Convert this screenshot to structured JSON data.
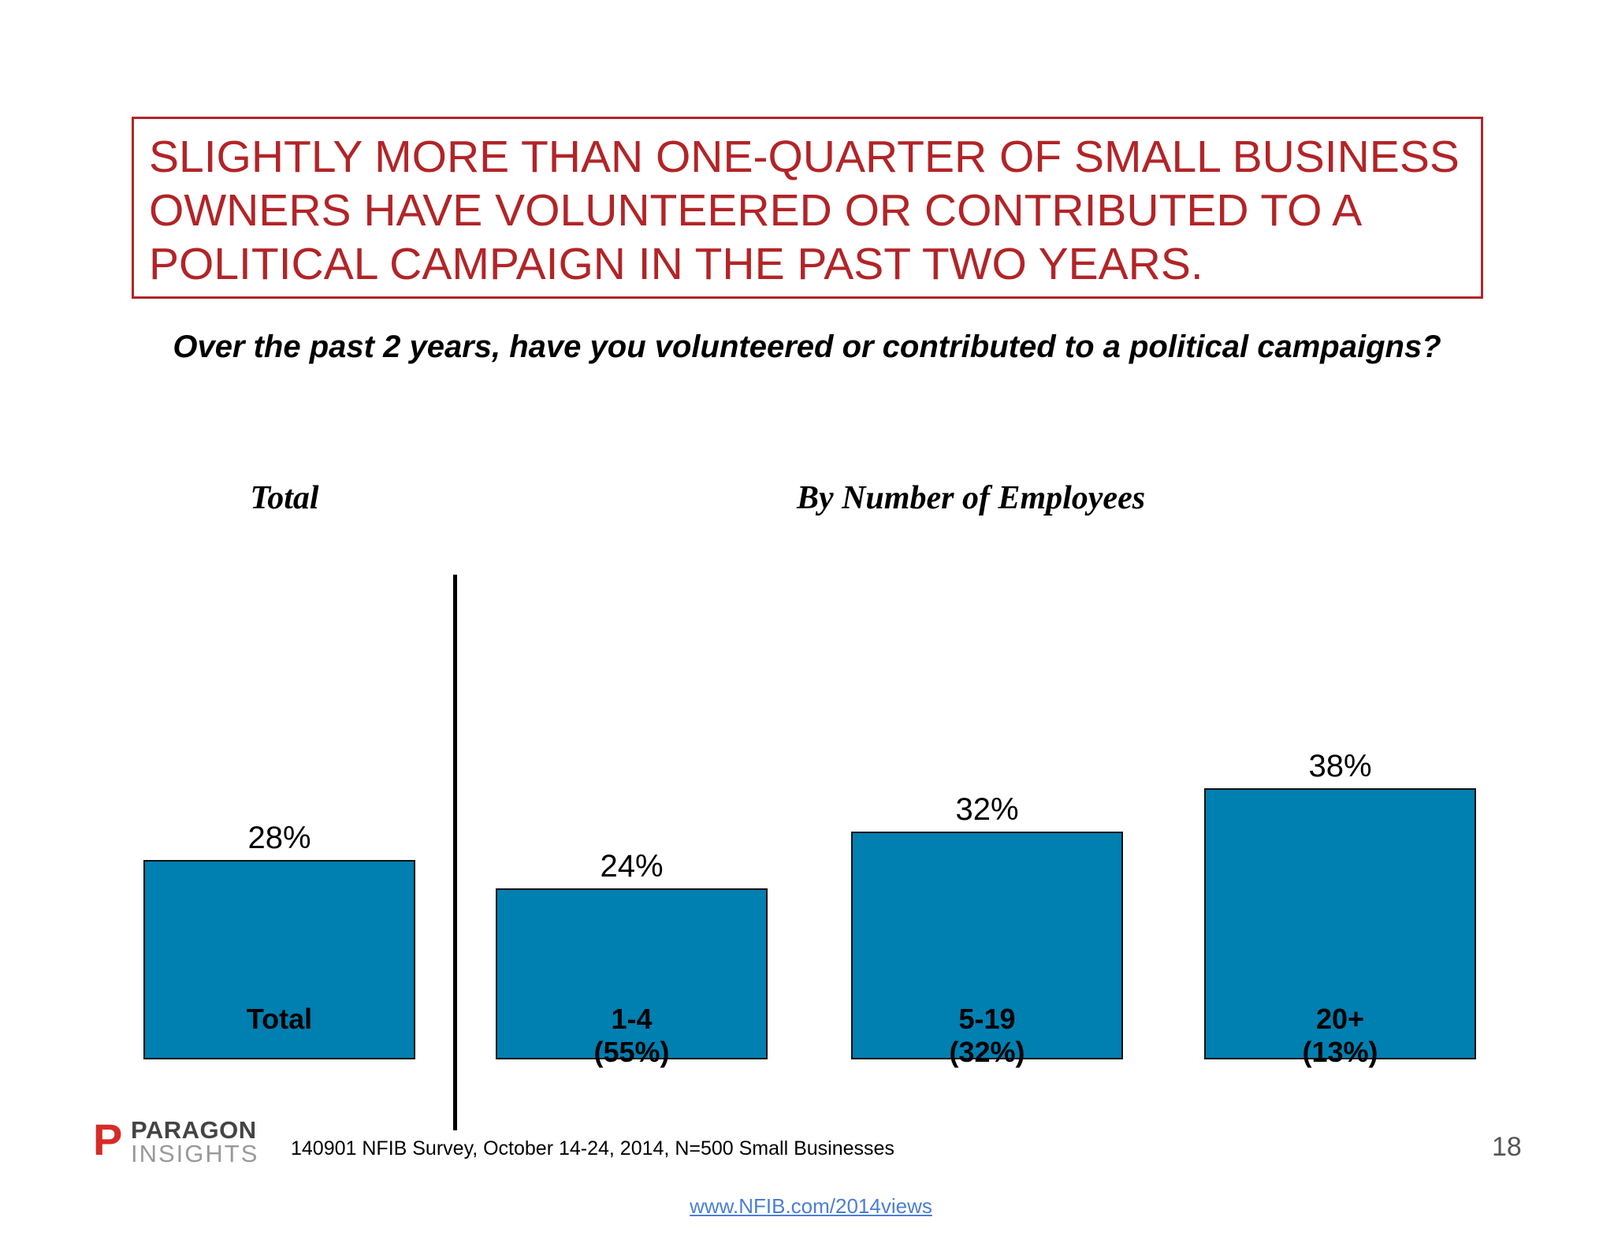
{
  "title": "SLIGHTLY MORE THAN ONE-QUARTER OF SMALL BUSINESS OWNERS HAVE VOLUNTEERED OR CONTRIBUTED TO A POLITICAL CAMPAIGN IN THE PAST TWO YEARS.",
  "question": "Over the past 2 years, have you volunteered or contributed to a political campaigns?",
  "chart_data": {
    "type": "bar",
    "group_headers": [
      "Total",
      "By Number of Employees"
    ],
    "categories": [
      {
        "label": "Total",
        "sub": ""
      },
      {
        "label": "1-4",
        "sub": "(55%)"
      },
      {
        "label": "5-19",
        "sub": "(32%)"
      },
      {
        "label": "20+",
        "sub": "(13%)"
      }
    ],
    "values": [
      28,
      24,
      32,
      38
    ],
    "value_labels": [
      "28%",
      "24%",
      "32%",
      "38%"
    ],
    "bar_color": "#007fb1",
    "ylim": [
      0,
      100
    ],
    "grid": false
  },
  "footer": {
    "logo": "PARAGON INSIGHTS",
    "logo_line1": "PARAGON",
    "logo_line2": "INSIGHTS",
    "source": "140901 NFIB Survey, October 14-24, 2014, N=500 Small Businesses",
    "page_number": "18",
    "link": "www.NFIB.com/2014views"
  },
  "colors": {
    "title": "#b22427",
    "link": "#4a7fd6"
  }
}
